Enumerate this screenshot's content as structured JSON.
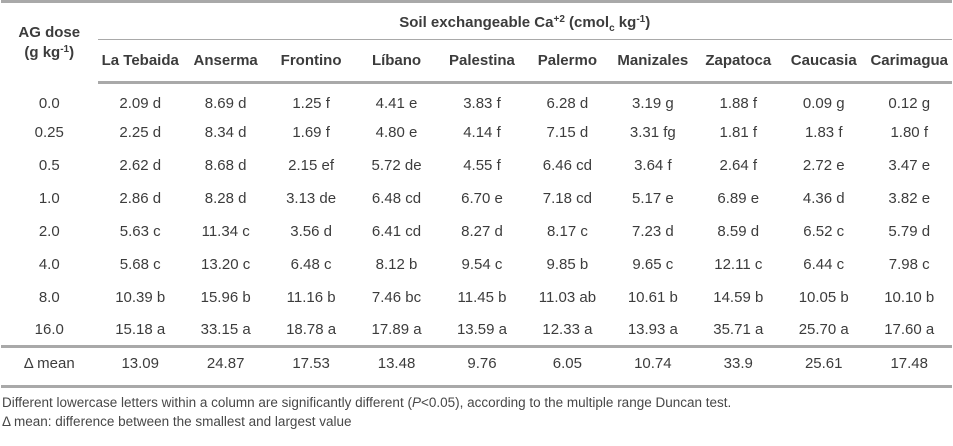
{
  "table": {
    "span_header": {
      "pre": "Soil exchangeable Ca",
      "sup1": "+2",
      "mid1": " (cmol",
      "sub1": "c",
      "mid2": " kg",
      "sup2": "-1",
      "post": ")"
    },
    "row_header": {
      "line1": "AG dose",
      "line2_pre": "(g kg",
      "line2_sup": "-1",
      "line2_post": ")"
    },
    "columns": [
      "La Tebaida",
      "Anserma",
      "Frontino",
      "Líbano",
      "Palestina",
      "Palermo",
      "Manizales",
      "Zapatoca",
      "Caucasia",
      "Carimagua"
    ],
    "rows": [
      {
        "dose": "0.0",
        "values": [
          "2.09 d",
          "8.69 d",
          "1.25 f",
          "4.41 e",
          "3.83 f",
          "6.28 d",
          "3.19 g",
          "1.88 f",
          "0.09 g",
          "0.12 g"
        ]
      },
      {
        "dose": "0.25",
        "values": [
          "2.25 d",
          "8.34 d",
          "1.69 f",
          "4.80 e",
          "4.14 f",
          "7.15 d",
          "3.31 fg",
          "1.81 f",
          "1.83 f",
          "1.80 f"
        ]
      },
      {
        "dose": "0.5",
        "values": [
          "2.62 d",
          "8.68 d",
          "2.15 ef",
          "5.72 de",
          "4.55 f",
          "6.46 cd",
          "3.64 f",
          "2.64 f",
          "2.72 e",
          "3.47 e"
        ]
      },
      {
        "dose": "1.0",
        "values": [
          "2.86 d",
          "8.28 d",
          "3.13 de",
          "6.48 cd",
          "6.70 e",
          "7.18 cd",
          "5.17 e",
          "6.89 e",
          "4.36 d",
          "3.82 e"
        ]
      },
      {
        "dose": "2.0",
        "values": [
          "5.63 c",
          "11.34 c",
          "3.56 d",
          "6.41 cd",
          "8.27 d",
          "8.17 c",
          "7.23 d",
          "8.59 d",
          "6.52 c",
          "5.79 d"
        ]
      },
      {
        "dose": "4.0",
        "values": [
          "5.68 c",
          "13.20 c",
          "6.48 c",
          "8.12 b",
          "9.54 c",
          "9.85 b",
          "9.65 c",
          "12.11 c",
          "6.44 c",
          "7.98 c"
        ]
      },
      {
        "dose": "8.0",
        "values": [
          "10.39 b",
          "15.96 b",
          "11.16 b",
          "7.46 bc",
          "11.45 b",
          "11.03 ab",
          "10.61 b",
          "14.59 b",
          "10.05 b",
          "10.10 b"
        ]
      },
      {
        "dose": "16.0",
        "values": [
          "15.18 a",
          "33.15 a",
          "18.78 a",
          "17.89 a",
          "13.59 a",
          "12.33 a",
          "13.93 a",
          "35.71 a",
          "25.70 a",
          "17.60 a"
        ]
      }
    ],
    "delta_row": {
      "label": "Δ mean",
      "values": [
        "13.09",
        "24.87",
        "17.53",
        "13.48",
        "9.76",
        "6.05",
        "10.74",
        "33.9",
        "25.61",
        "17.48"
      ]
    }
  },
  "footnotes": {
    "note1_pre": "Different lowercase letters within a column are significantly different (",
    "note1_italic": "P",
    "note1_post": "<0.05), according to the multiple range Duncan test.",
    "note2": "Δ mean: difference between the smallest and largest value"
  }
}
